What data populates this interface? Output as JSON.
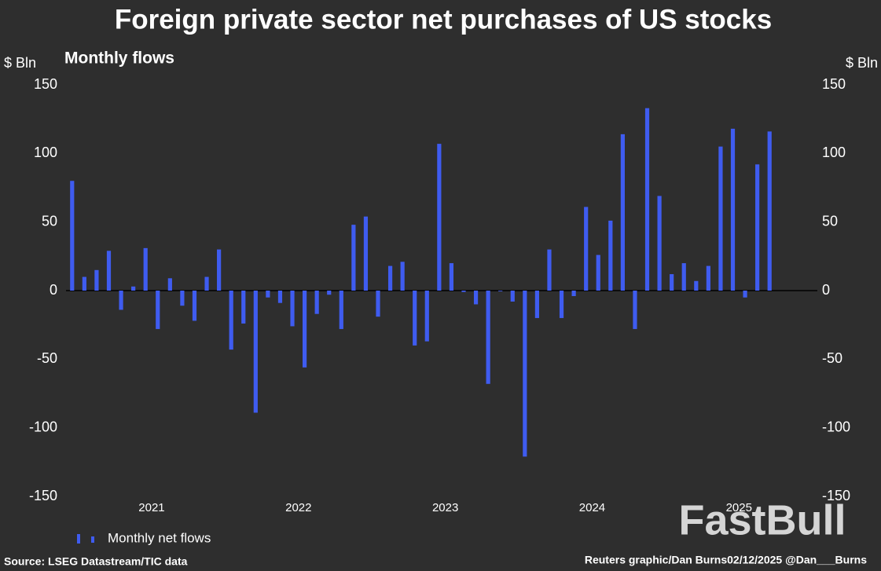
{
  "chart_data": {
    "type": "bar",
    "title": "Foreign private sector net purchases of US stocks",
    "subtitle": "Monthly flows",
    "y_label": "$ Bln",
    "y2_label": "$ Bln",
    "categories": [
      null,
      null,
      null,
      null,
      null,
      null,
      null,
      "2021",
      null,
      null,
      null,
      null,
      null,
      null,
      null,
      null,
      null,
      null,
      null,
      "2022",
      null,
      null,
      null,
      null,
      null,
      null,
      null,
      null,
      null,
      null,
      null,
      "2023",
      null,
      null,
      null,
      null,
      null,
      null,
      null,
      null,
      null,
      null,
      null,
      "2024",
      null,
      null,
      null,
      null,
      null,
      null,
      null,
      null,
      null,
      null,
      null,
      "2025",
      null,
      null
    ],
    "series": [
      {
        "name": "Monthly net flows",
        "color": "#3f5cf0",
        "values": [
          80,
          10,
          15,
          29,
          -14,
          3,
          31,
          -28,
          9,
          -11,
          -22,
          10,
          30,
          -43,
          -24,
          -89,
          -5,
          -9,
          -26,
          -56,
          -17,
          -3,
          -28,
          48,
          54,
          -19,
          18,
          21,
          -40,
          -37,
          107,
          20,
          -1,
          -10,
          -68,
          -0.5,
          -8,
          -121,
          -20,
          30,
          -20,
          -4,
          61,
          26,
          51,
          114,
          -28,
          133,
          69,
          12,
          20,
          7,
          18,
          105,
          118,
          -5,
          92,
          116
        ]
      }
    ],
    "ylim": [
      -150,
      150
    ],
    "yticks": [
      -150,
      -100,
      -50,
      0,
      50,
      100,
      150
    ],
    "y2lim": [
      -150,
      150
    ],
    "y2ticks": [
      -150,
      -100,
      -50,
      0,
      50,
      100,
      150
    ],
    "grid": false,
    "source": "Source: LSEG Datastream/TIC data",
    "credit": "Reuters graphic/Dan Burns02/12/2025 @Dan___Burns",
    "watermark": "FastBull"
  }
}
